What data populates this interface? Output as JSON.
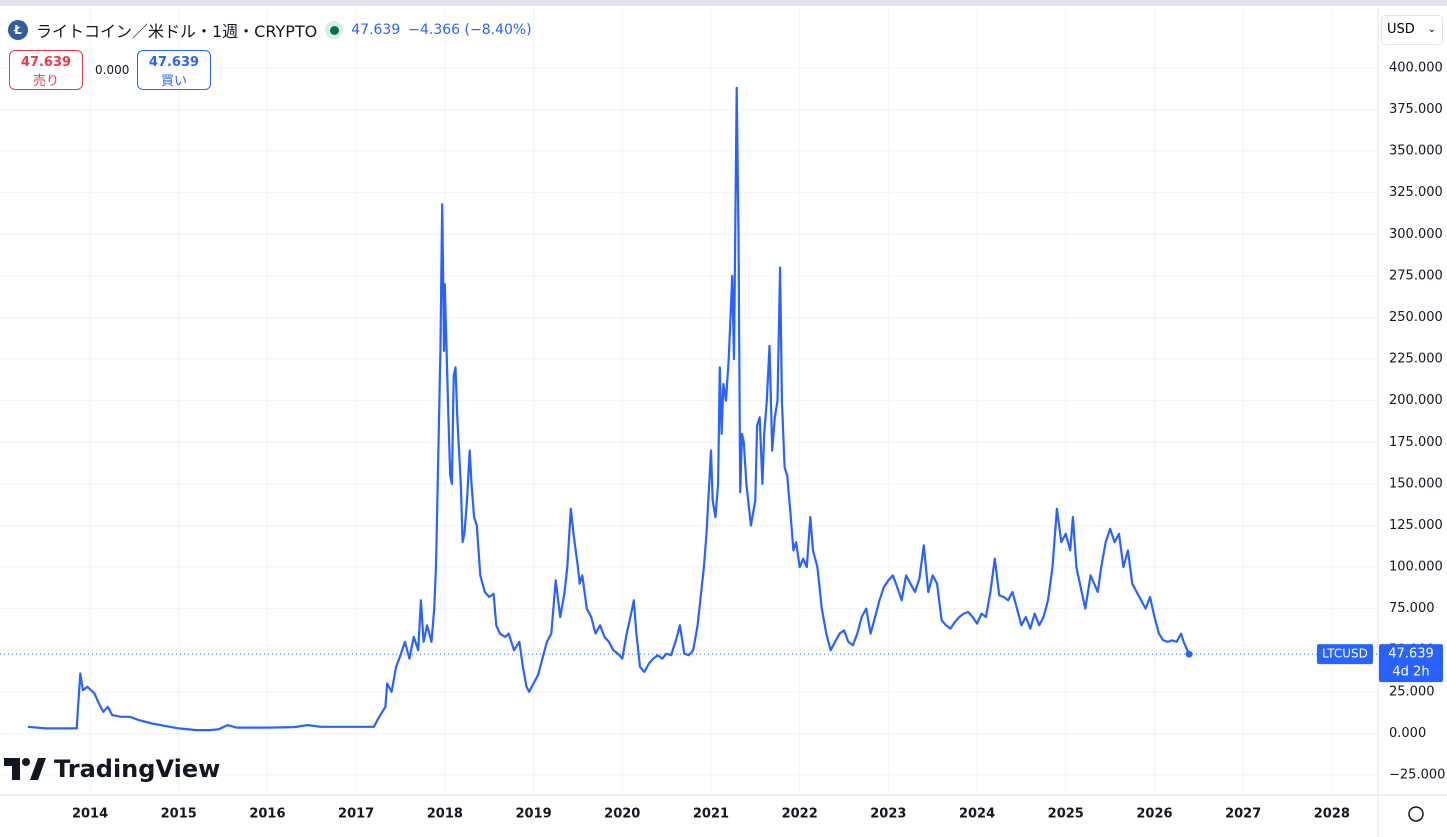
{
  "header": {
    "title": "ライトコイン／米ドル・1週・CRYPTO",
    "price": "47.639",
    "change": "−4.366 (−8.40%)",
    "sell": {
      "price": "47.639",
      "label": "売り"
    },
    "spread": "0.000",
    "buy": {
      "price": "47.639",
      "label": "買い"
    },
    "currency": "USD",
    "logo": "TradingView"
  },
  "chart_data": {
    "type": "line",
    "x": [
      2013.3,
      2013.5,
      2013.7,
      2013.85,
      2013.87,
      2013.89,
      2013.92,
      2013.97,
      2014.05,
      2014.1,
      2014.15,
      2014.2,
      2014.25,
      2014.35,
      2014.45,
      2014.55,
      2014.7,
      2014.9,
      2015.0,
      2015.2,
      2015.35,
      2015.45,
      2015.55,
      2015.65,
      2015.8,
      2016.0,
      2016.3,
      2016.45,
      2016.6,
      2016.9,
      2017.2,
      2017.25,
      2017.33,
      2017.35,
      2017.4,
      2017.45,
      2017.5,
      2017.55,
      2017.6,
      2017.65,
      2017.7,
      2017.73,
      2017.76,
      2017.8,
      2017.85,
      2017.88,
      2017.9,
      2017.92,
      2017.95,
      2017.97,
      2017.99,
      2018.0,
      2018.02,
      2018.04,
      2018.06,
      2018.08,
      2018.1,
      2018.12,
      2018.14,
      2018.16,
      2018.18,
      2018.2,
      2018.22,
      2018.25,
      2018.28,
      2018.3,
      2018.33,
      2018.36,
      2018.4,
      2018.45,
      2018.5,
      2018.55,
      2018.58,
      2018.62,
      2018.68,
      2018.72,
      2018.78,
      2018.84,
      2018.88,
      2018.92,
      2018.95,
      2019.0,
      2019.05,
      2019.1,
      2019.15,
      2019.2,
      2019.25,
      2019.3,
      2019.35,
      2019.38,
      2019.42,
      2019.45,
      2019.5,
      2019.52,
      2019.55,
      2019.6,
      2019.65,
      2019.7,
      2019.75,
      2019.8,
      2019.85,
      2019.9,
      2019.95,
      2020.0,
      2020.05,
      2020.1,
      2020.13,
      2020.16,
      2020.2,
      2020.25,
      2020.3,
      2020.35,
      2020.4,
      2020.45,
      2020.5,
      2020.55,
      2020.6,
      2020.65,
      2020.7,
      2020.75,
      2020.8,
      2020.85,
      2020.88,
      2020.92,
      2020.95,
      2021.0,
      2021.02,
      2021.05,
      2021.08,
      2021.1,
      2021.12,
      2021.14,
      2021.17,
      2021.2,
      2021.22,
      2021.24,
      2021.26,
      2021.29,
      2021.31,
      2021.33,
      2021.35,
      2021.37,
      2021.4,
      2021.45,
      2021.5,
      2021.52,
      2021.55,
      2021.58,
      2021.6,
      2021.63,
      2021.66,
      2021.69,
      2021.72,
      2021.75,
      2021.78,
      2021.8,
      2021.83,
      2021.86,
      2021.9,
      2021.93,
      2021.96,
      2022.0,
      2022.04,
      2022.08,
      2022.12,
      2022.15,
      2022.2,
      2022.25,
      2022.3,
      2022.35,
      2022.4,
      2022.45,
      2022.5,
      2022.55,
      2022.6,
      2022.65,
      2022.7,
      2022.75,
      2022.8,
      2022.85,
      2022.9,
      2022.95,
      2023.0,
      2023.05,
      2023.1,
      2023.15,
      2023.2,
      2023.25,
      2023.3,
      2023.35,
      2023.4,
      2023.45,
      2023.5,
      2023.55,
      2023.6,
      2023.65,
      2023.7,
      2023.75,
      2023.8,
      2023.85,
      2023.9,
      2023.95,
      2024.0,
      2024.05,
      2024.1,
      2024.15,
      2024.2,
      2024.25,
      2024.3,
      2024.35,
      2024.4,
      2024.45,
      2024.5,
      2024.55,
      2024.6,
      2024.65,
      2024.7,
      2024.75,
      2024.8,
      2024.85,
      2024.9,
      2024.95,
      2025.0,
      2025.05,
      2025.08,
      2025.12,
      2025.18,
      2025.22,
      2025.28,
      2025.32,
      2025.36,
      2025.4,
      2025.45,
      2025.5,
      2025.55,
      2025.6,
      2025.65,
      2025.7,
      2025.75,
      2025.8,
      2025.85,
      2025.9,
      2025.95,
      2026.0,
      2026.05,
      2026.1,
      2026.15,
      2026.2,
      2026.25,
      2026.3,
      2026.33,
      2026.37,
      2026.39
    ],
    "series": [
      {
        "name": "LTCUSD",
        "color": "#2962ff",
        "values": [
          4,
          3,
          3,
          3,
          20,
          36,
          26,
          28,
          24,
          18,
          13,
          16,
          11,
          10,
          10,
          8,
          6,
          4,
          3,
          2,
          2,
          2.5,
          5,
          3.5,
          3.5,
          3.5,
          3.8,
          5,
          4,
          4,
          4,
          9,
          16,
          30,
          25,
          40,
          47,
          55,
          45,
          58,
          50,
          80,
          55,
          65,
          55,
          75,
          100,
          150,
          230,
          318,
          230,
          270,
          230,
          190,
          155,
          150,
          215,
          220,
          190,
          170,
          150,
          115,
          120,
          140,
          170,
          150,
          130,
          125,
          95,
          85,
          82,
          84,
          65,
          60,
          58,
          60,
          50,
          55,
          40,
          28,
          25,
          30,
          35,
          45,
          55,
          60,
          92,
          70,
          85,
          100,
          135,
          120,
          100,
          90,
          95,
          75,
          70,
          60,
          65,
          58,
          55,
          50,
          48,
          45,
          60,
          72,
          80,
          60,
          40,
          37,
          42,
          45,
          47,
          45,
          48,
          47,
          55,
          65,
          48,
          47,
          50,
          65,
          80,
          100,
          120,
          170,
          140,
          130,
          150,
          220,
          180,
          210,
          200,
          225,
          250,
          275,
          225,
          388,
          300,
          145,
          180,
          175,
          150,
          125,
          140,
          185,
          190,
          150,
          180,
          200,
          233,
          170,
          190,
          200,
          280,
          200,
          160,
          155,
          130,
          110,
          115,
          100,
          105,
          100,
          130,
          110,
          100,
          75,
          60,
          50,
          55,
          60,
          62,
          55,
          53,
          60,
          70,
          75,
          60,
          70,
          80,
          88,
          92,
          95,
          88,
          80,
          95,
          90,
          85,
          93,
          113,
          85,
          95,
          90,
          68,
          65,
          63,
          67,
          70,
          72,
          73,
          70,
          66,
          72,
          70,
          85,
          105,
          83,
          82,
          80,
          85,
          75,
          65,
          70,
          63,
          72,
          65,
          70,
          80,
          100,
          135,
          115,
          120,
          110,
          130,
          100,
          85,
          75,
          95,
          90,
          85,
          100,
          115,
          123,
          115,
          120,
          100,
          110,
          90,
          85,
          80,
          75,
          82,
          70,
          60,
          56,
          55,
          56,
          55,
          60,
          55,
          50,
          47.639
        ]
      }
    ],
    "price_label": {
      "price": "47.639",
      "countdown": "4d 2h"
    },
    "xlim": [
      2012.985,
      2028.52
    ],
    "xticks": [
      2014,
      2015,
      2016,
      2017,
      2018,
      2019,
      2020,
      2021,
      2022,
      2023,
      2024,
      2025,
      2026,
      2027,
      2028
    ],
    "ylim": [
      -37,
      436
    ],
    "yticks": [
      {
        "value": -25,
        "label": "−25.000"
      },
      {
        "value": 0,
        "label": "0.000"
      },
      {
        "value": 25,
        "label": "25.000"
      },
      {
        "value": 50,
        "label": "50.000"
      },
      {
        "value": 75,
        "label": "75.000"
      },
      {
        "value": 100,
        "label": "100.000"
      },
      {
        "value": 125,
        "label": "125.000"
      },
      {
        "value": 150,
        "label": "150.000"
      },
      {
        "value": 175,
        "label": "175.000"
      },
      {
        "value": 200,
        "label": "200.000"
      },
      {
        "value": 225,
        "label": "225.000"
      },
      {
        "value": 250,
        "label": "250.000"
      },
      {
        "value": 275,
        "label": "275.000"
      },
      {
        "value": 300,
        "label": "300.000"
      },
      {
        "value": 325,
        "label": "325.000"
      },
      {
        "value": 350,
        "label": "350.000"
      },
      {
        "value": 375,
        "label": "375.000"
      },
      {
        "value": 400,
        "label": "400.000"
      }
    ],
    "grid": true
  }
}
